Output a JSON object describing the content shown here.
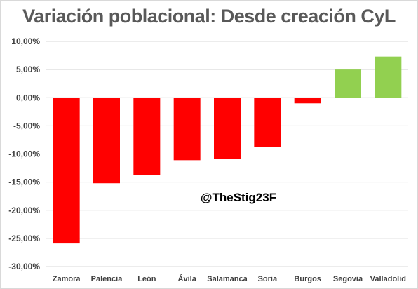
{
  "chart_data": {
    "type": "bar",
    "title": "Variación poblacional: Desde creación CyL",
    "xlabel": "",
    "ylabel": "",
    "categories": [
      "Zamora",
      "Palencia",
      "León",
      "Ávila",
      "Salamanca",
      "Soria",
      "Burgos",
      "Segovia",
      "Valladolid"
    ],
    "values": [
      -25.9,
      -15.2,
      -13.7,
      -11.1,
      -10.9,
      -8.7,
      -1.0,
      5.0,
      7.3
    ],
    "ylim": [
      -30,
      10
    ],
    "yticks": [
      "10,00%",
      "5,00%",
      "0,00%",
      "-5,00%",
      "-10,00%",
      "-15,00%",
      "-20,00%",
      "-25,00%",
      "-30,00%"
    ],
    "ytick_values": [
      10,
      5,
      0,
      -5,
      -10,
      -15,
      -20,
      -25,
      -30
    ],
    "grid": true,
    "legend": "none",
    "annotation": "@TheStig23F",
    "colors": {
      "negative": "#ff0000",
      "positive": "#92d050",
      "grid": "#d9d9d9",
      "title": "#595959"
    }
  }
}
